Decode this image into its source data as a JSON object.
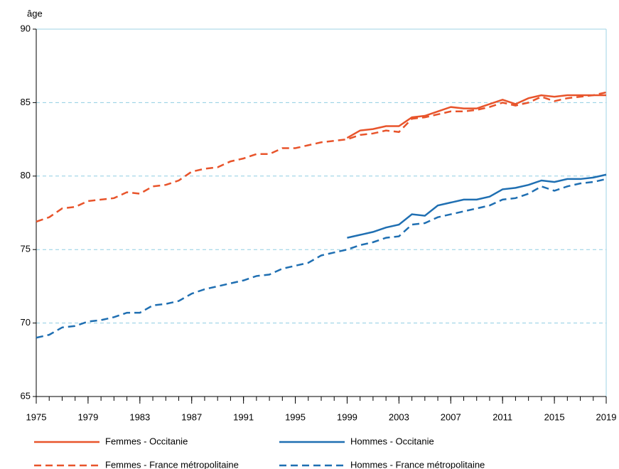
{
  "chart_data": {
    "type": "line",
    "y_label": "âge",
    "x": [
      1975,
      1976,
      1977,
      1978,
      1979,
      1980,
      1981,
      1982,
      1983,
      1984,
      1985,
      1986,
      1987,
      1988,
      1989,
      1990,
      1991,
      1992,
      1993,
      1994,
      1995,
      1996,
      1997,
      1998,
      1999,
      2000,
      2001,
      2002,
      2003,
      2004,
      2005,
      2006,
      2007,
      2008,
      2009,
      2010,
      2011,
      2012,
      2013,
      2014,
      2015,
      2016,
      2017,
      2018,
      2019
    ],
    "xlim": [
      1975,
      2019
    ],
    "xticks": [
      1975,
      1979,
      1983,
      1987,
      1991,
      1995,
      1999,
      2003,
      2007,
      2011,
      2015,
      2019
    ],
    "ylim": [
      65,
      90
    ],
    "yticks": [
      65,
      70,
      75,
      80,
      85,
      90
    ],
    "grid": true,
    "series": [
      {
        "name": "Femmes - Occitanie",
        "color": "#e8542b",
        "dashed": false,
        "values": [
          null,
          null,
          null,
          null,
          null,
          null,
          null,
          null,
          null,
          null,
          null,
          null,
          null,
          null,
          null,
          null,
          null,
          null,
          null,
          null,
          null,
          null,
          null,
          null,
          82.6,
          83.1,
          83.2,
          83.4,
          83.4,
          84.0,
          84.1,
          84.4,
          84.7,
          84.6,
          84.6,
          84.9,
          85.2,
          84.9,
          85.3,
          85.5,
          85.4,
          85.5,
          85.5,
          85.5,
          85.5
        ]
      },
      {
        "name": "Hommes - Occitanie",
        "color": "#1f6fb2",
        "dashed": false,
        "values": [
          null,
          null,
          null,
          null,
          null,
          null,
          null,
          null,
          null,
          null,
          null,
          null,
          null,
          null,
          null,
          null,
          null,
          null,
          null,
          null,
          null,
          null,
          null,
          null,
          75.8,
          76.0,
          76.2,
          76.5,
          76.7,
          77.4,
          77.3,
          78.0,
          78.2,
          78.4,
          78.4,
          78.6,
          79.1,
          79.2,
          79.4,
          79.7,
          79.6,
          79.8,
          79.8,
          79.9,
          80.1
        ]
      },
      {
        "name": "Femmes - France métropolitaine",
        "color": "#e8542b",
        "dashed": true,
        "values": [
          76.9,
          77.2,
          77.8,
          77.9,
          78.3,
          78.4,
          78.5,
          78.9,
          78.8,
          79.3,
          79.4,
          79.7,
          80.3,
          80.5,
          80.6,
          81.0,
          81.2,
          81.5,
          81.5,
          81.9,
          81.9,
          82.1,
          82.3,
          82.4,
          82.5,
          82.8,
          82.9,
          83.1,
          83.0,
          83.9,
          84.0,
          84.2,
          84.4,
          84.4,
          84.5,
          84.7,
          85.0,
          84.8,
          85.0,
          85.4,
          85.1,
          85.3,
          85.4,
          85.5,
          85.7
        ]
      },
      {
        "name": "Hommes - France métropolitaine",
        "color": "#1f6fb2",
        "dashed": true,
        "values": [
          69.0,
          69.2,
          69.7,
          69.8,
          70.1,
          70.2,
          70.4,
          70.7,
          70.7,
          71.2,
          71.3,
          71.5,
          72.0,
          72.3,
          72.5,
          72.7,
          72.9,
          73.2,
          73.3,
          73.7,
          73.9,
          74.1,
          74.6,
          74.8,
          75.0,
          75.3,
          75.5,
          75.8,
          75.9,
          76.7,
          76.8,
          77.2,
          77.4,
          77.6,
          77.8,
          78.0,
          78.4,
          78.5,
          78.8,
          79.3,
          79.0,
          79.3,
          79.5,
          79.6,
          79.8
        ]
      }
    ]
  }
}
